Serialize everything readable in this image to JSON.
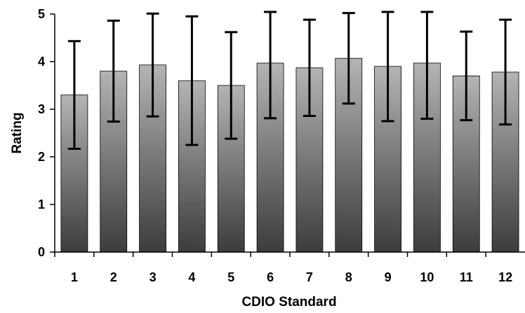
{
  "chart_data": {
    "type": "bar",
    "title": "",
    "xlabel": "CDIO Standard",
    "ylabel": "Rating",
    "ylim": [
      0,
      5
    ],
    "yticks": [
      0,
      1,
      2,
      3,
      4,
      5
    ],
    "grid": false,
    "categories": [
      "1",
      "2",
      "3",
      "4",
      "5",
      "6",
      "7",
      "8",
      "9",
      "10",
      "11",
      "12"
    ],
    "values": [
      3.3,
      3.8,
      3.93,
      3.6,
      3.5,
      3.97,
      3.87,
      4.07,
      3.9,
      3.97,
      3.7,
      3.78
    ],
    "error": [
      1.13,
      1.06,
      1.08,
      1.35,
      1.12,
      1.16,
      1.01,
      0.95,
      1.15,
      1.17,
      0.93,
      1.1
    ],
    "colors": {
      "bar_top": "#b4b4b4",
      "bar_bottom": "#3c3c3c",
      "bar_stroke": "#000000",
      "error_bar": "#000000"
    }
  }
}
